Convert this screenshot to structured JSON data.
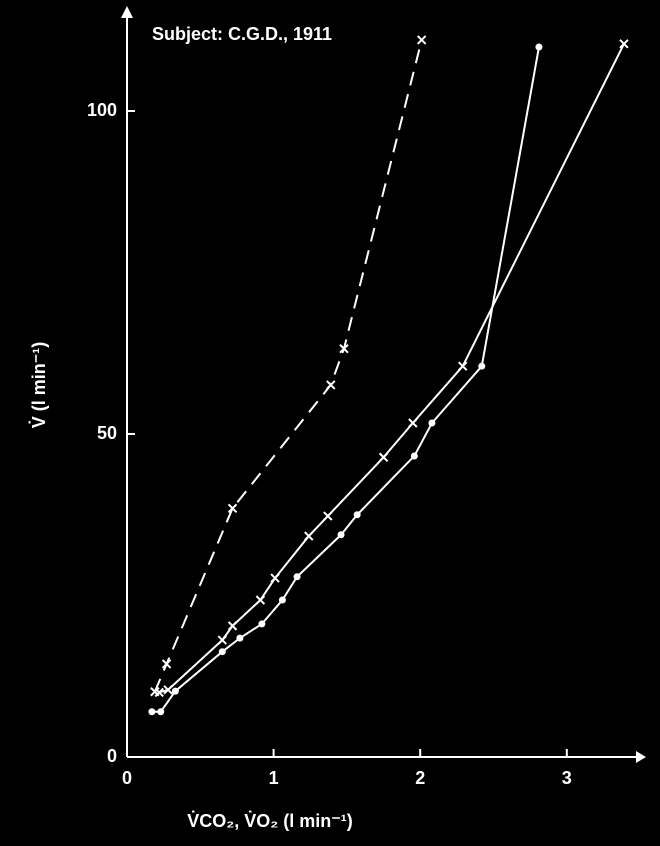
{
  "chart_data": {
    "type": "line",
    "title": "Subject: C.G.D., 1911",
    "x_label": "V̇CO₂, V̇O₂ (l min⁻¹)",
    "y_label": "V̇ (l min⁻¹)",
    "xlim": [
      0,
      3.5
    ],
    "ylim": [
      0,
      115
    ],
    "xticks": [
      0,
      1,
      2,
      3
    ],
    "yticks": [
      0,
      50,
      100
    ],
    "grid": false,
    "series": [
      {
        "color": "#ffffff",
        "dashed": true,
        "marker": "x",
        "x": [
          0.19,
          0.27,
          0.72,
          1.39,
          1.48,
          2.01
        ],
        "values": [
          10.1,
          14.4,
          38.5,
          57.6,
          63.2,
          111
        ]
      },
      {
        "color": "#ffffff",
        "dashed": false,
        "marker": "x",
        "x": [
          0.22,
          0.28,
          0.65,
          0.72,
          0.91,
          1.01,
          1.24,
          1.37,
          1.75,
          1.95,
          2.29,
          3.39
        ],
        "values": [
          10,
          10.4,
          18.1,
          20.3,
          24.3,
          27.7,
          34.2,
          37.3,
          46.4,
          51.7,
          60.5,
          110.4
        ]
      },
      {
        "color": "#ffffff",
        "dashed": false,
        "marker": "o",
        "x": [
          0.17,
          0.23,
          0.33,
          0.65,
          0.77,
          0.92,
          1.06,
          1.16,
          1.46,
          1.57,
          1.96,
          2.08,
          2.42,
          2.81
        ],
        "values": [
          7,
          7,
          10.2,
          16.3,
          18.4,
          20.6,
          24.3,
          27.9,
          34.4,
          37.5,
          46.6,
          51.7,
          60.5,
          109.9
        ]
      }
    ]
  }
}
